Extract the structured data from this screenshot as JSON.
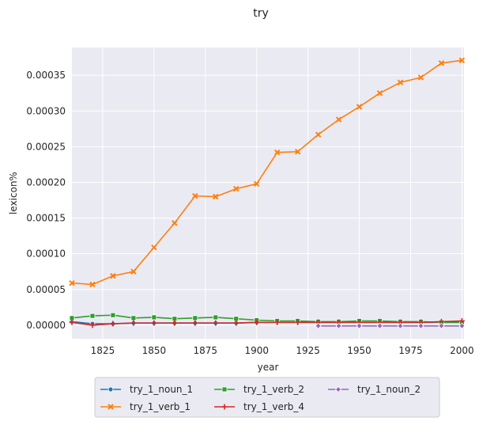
{
  "chart_data": {
    "type": "line",
    "title": "try",
    "xlabel": "year",
    "ylabel": "lexicon%",
    "xlim": [
      1810,
      2001
    ],
    "ylim": [
      -1.9e-05,
      0.000389
    ],
    "x_ticks": [
      1825,
      1850,
      1875,
      1900,
      1925,
      1950,
      1975,
      2000
    ],
    "y_ticks": [
      0,
      5e-05,
      0.0001,
      0.00015,
      0.0002,
      0.00025,
      0.0003,
      0.00035
    ],
    "y_tick_labels": [
      "0.00000",
      "0.00005",
      "0.00010",
      "0.00015",
      "0.00020",
      "0.00025",
      "0.00030",
      "0.00035"
    ],
    "grid": true,
    "legend_position": "bottom-center",
    "series": [
      {
        "name": "try_1_noun_1",
        "color": "#1f77b4",
        "marker": "circle",
        "x": [
          1810,
          1820,
          1830,
          1840,
          1850,
          1860,
          1870,
          1880,
          1890,
          1900,
          1910,
          1920,
          1930,
          1940,
          1950,
          1960,
          1970,
          1980,
          1990,
          2000
        ],
        "y": [
          5e-06,
          2e-06,
          2e-06,
          3e-06,
          3e-06,
          3e-06,
          3e-06,
          3e-06,
          3e-06,
          4e-06,
          4e-06,
          4e-06,
          4e-06,
          4e-06,
          4e-06,
          4e-06,
          4e-06,
          4e-06,
          4e-06,
          4e-06
        ]
      },
      {
        "name": "try_1_verb_1",
        "color": "#ff7f0e",
        "marker": "x",
        "x": [
          1810,
          1820,
          1830,
          1840,
          1850,
          1860,
          1870,
          1880,
          1890,
          1900,
          1910,
          1920,
          1930,
          1940,
          1950,
          1960,
          1970,
          1980,
          1990,
          2000
        ],
        "y": [
          5.9e-05,
          5.7e-05,
          6.9e-05,
          7.5e-05,
          0.000109,
          0.000143,
          0.000181,
          0.00018,
          0.000191,
          0.000198,
          0.000242,
          0.000243,
          0.000267,
          0.000288,
          0.000306,
          0.000325,
          0.00034,
          0.000347,
          0.000367,
          0.000371
        ]
      },
      {
        "name": "try_1_verb_2",
        "color": "#2ca02c",
        "marker": "square",
        "x": [
          1810,
          1820,
          1830,
          1840,
          1850,
          1860,
          1870,
          1880,
          1890,
          1900,
          1910,
          1920,
          1930,
          1940,
          1950,
          1960,
          1970,
          1980,
          1990,
          2000
        ],
        "y": [
          1e-05,
          1.3e-05,
          1.4e-05,
          1e-05,
          1.1e-05,
          9e-06,
          1e-05,
          1.1e-05,
          9e-06,
          7e-06,
          6e-06,
          6e-06,
          5e-06,
          5e-06,
          6e-06,
          6e-06,
          5e-06,
          5e-06,
          4e-06,
          4e-06
        ]
      },
      {
        "name": "try_1_verb_4",
        "color": "#d62728",
        "marker": "plus",
        "x": [
          1810,
          1820,
          1830,
          1840,
          1850,
          1860,
          1870,
          1880,
          1890,
          1900,
          1910,
          1920,
          1930,
          1940,
          1950,
          1960,
          1970,
          1980,
          1990,
          2000
        ],
        "y": [
          4e-06,
          0,
          2e-06,
          3e-06,
          3e-06,
          3e-06,
          3e-06,
          3e-06,
          3e-06,
          4e-06,
          4e-06,
          4e-06,
          4e-06,
          4e-06,
          4e-06,
          4e-06,
          4e-06,
          4e-06,
          5e-06,
          6e-06
        ]
      },
      {
        "name": "try_1_noun_2",
        "color": "#9467bd",
        "marker": "diamond",
        "x": [
          1930,
          1940,
          1950,
          1960,
          1970,
          1980,
          1990,
          2000
        ],
        "y": [
          -1e-06,
          -1e-06,
          -1e-06,
          -1e-06,
          -1e-06,
          -1e-06,
          -1e-06,
          -1e-06
        ]
      }
    ]
  }
}
